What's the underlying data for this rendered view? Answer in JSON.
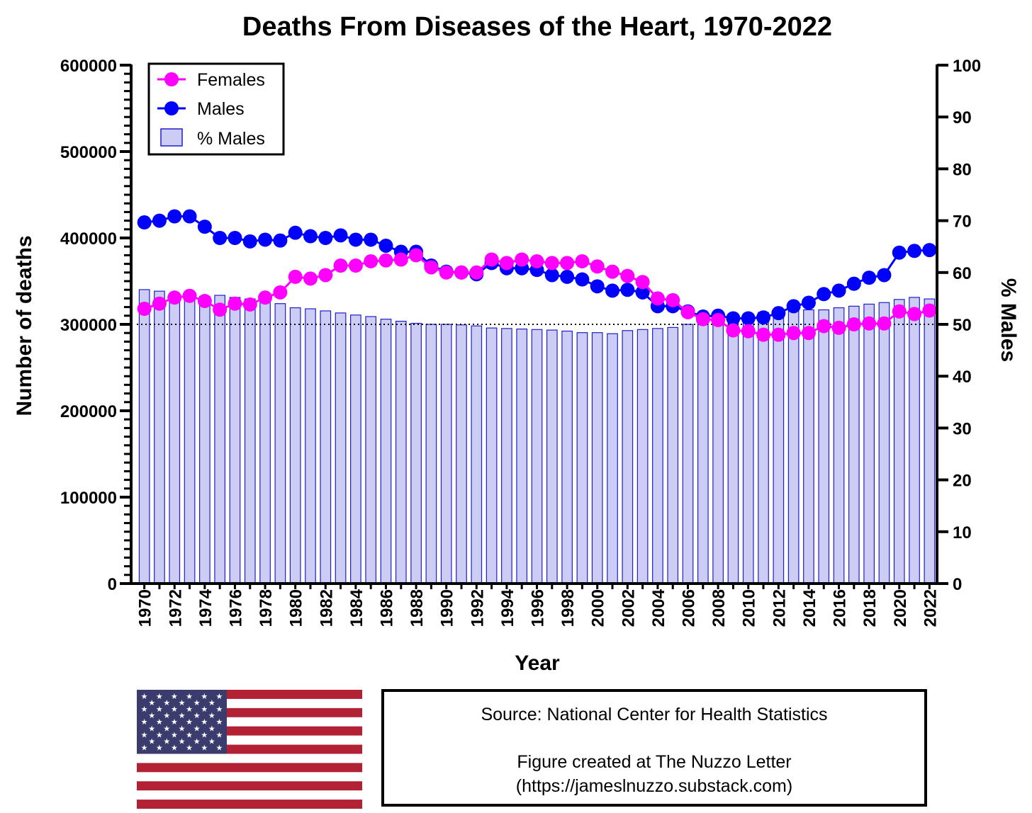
{
  "chart_data": {
    "type": "bar+line",
    "title": "Deaths From Diseases of the Heart, 1970-2022",
    "xlabel": "Year",
    "ylabel": "Number of deaths",
    "y2label": "% Males",
    "ylim": [
      0,
      600000
    ],
    "y2lim": [
      0,
      100
    ],
    "yticks": [
      "0",
      "100000",
      "200000",
      "300000",
      "400000",
      "500000",
      "600000"
    ],
    "y2ticks": [
      "0",
      "10",
      "20",
      "30",
      "40",
      "50",
      "60",
      "70",
      "80",
      "90",
      "100"
    ],
    "xtick_labels": [
      "1970",
      "1972",
      "1974",
      "1976",
      "1978",
      "1980",
      "1982",
      "1984",
      "1986",
      "1988",
      "1990",
      "1992",
      "1994",
      "1996",
      "1998",
      "2000",
      "2002",
      "2004",
      "2006",
      "2008",
      "2010",
      "2012",
      "2014",
      "2016",
      "2018",
      "2020",
      "2022"
    ],
    "reference_line": {
      "axis": "y2",
      "value": 50,
      "style": "dotted"
    },
    "legend_position": "top-left",
    "years": [
      1970,
      1971,
      1972,
      1973,
      1974,
      1975,
      1976,
      1977,
      1978,
      1979,
      1980,
      1981,
      1982,
      1983,
      1984,
      1985,
      1986,
      1987,
      1988,
      1989,
      1990,
      1991,
      1992,
      1993,
      1994,
      1995,
      1996,
      1997,
      1998,
      1999,
      2000,
      2001,
      2002,
      2003,
      2004,
      2005,
      2006,
      2007,
      2008,
      2009,
      2010,
      2011,
      2012,
      2013,
      2014,
      2015,
      2016,
      2017,
      2018,
      2019,
      2020,
      2021,
      2022
    ],
    "series": [
      {
        "name": "% Males",
        "type": "bar",
        "axis": "y2",
        "color": "#CCCCF5",
        "edge_color": "#1F1FCC",
        "values": [
          56.7,
          56.4,
          55.7,
          55.2,
          55.4,
          55.6,
          55.2,
          54.9,
          54.5,
          54.0,
          53.2,
          53.0,
          52.6,
          52.2,
          51.8,
          51.5,
          51.0,
          50.6,
          50.2,
          50.0,
          50.0,
          49.9,
          49.7,
          49.3,
          49.2,
          49.1,
          49.0,
          48.9,
          48.7,
          48.4,
          48.4,
          48.2,
          48.8,
          49.0,
          49.2,
          49.4,
          50.0,
          50.6,
          51.4,
          52.0,
          52.0,
          52.3,
          52.4,
          52.6,
          52.8,
          52.8,
          53.2,
          53.5,
          53.9,
          54.2,
          54.8,
          55.2,
          54.9
        ]
      },
      {
        "name": "Females",
        "type": "line",
        "axis": "y",
        "color": "#FF00FF",
        "values": [
          318000,
          324000,
          331000,
          333000,
          327000,
          317000,
          324000,
          323000,
          331000,
          337000,
          355000,
          353000,
          357000,
          368000,
          368000,
          373000,
          374000,
          375000,
          380000,
          366000,
          360000,
          360000,
          360000,
          375000,
          371000,
          375000,
          373000,
          371000,
          371000,
          373000,
          367000,
          361000,
          356000,
          349000,
          330000,
          328000,
          314000,
          306000,
          305000,
          293000,
          292000,
          288000,
          288000,
          290000,
          290000,
          298000,
          296000,
          300000,
          301000,
          301000,
          315000,
          312000,
          316000
        ]
      },
      {
        "name": "Males",
        "type": "line",
        "axis": "y",
        "color": "#0000FF",
        "values": [
          418000,
          420000,
          425000,
          425000,
          413000,
          400000,
          400000,
          396000,
          398000,
          397000,
          406000,
          402000,
          400000,
          403000,
          398000,
          398000,
          391000,
          384000,
          384000,
          368000,
          361000,
          360000,
          358000,
          371000,
          365000,
          365000,
          363000,
          357000,
          355000,
          352000,
          344000,
          339000,
          340000,
          337000,
          321000,
          321000,
          315000,
          309000,
          310000,
          307000,
          307000,
          308000,
          313000,
          321000,
          325000,
          335000,
          339000,
          347000,
          354000,
          357000,
          383000,
          385000,
          386000
        ]
      }
    ]
  },
  "flag": {
    "name": "United States flag",
    "red": "#B22234",
    "blue": "#3C3B6E",
    "white": "#FFFFFF"
  },
  "source_box": {
    "line1": "Source: National Center for Health Statistics",
    "line2": "Figure created at The Nuzzo Letter",
    "line3": "(https://jameslnuzzo.substack.com)"
  }
}
